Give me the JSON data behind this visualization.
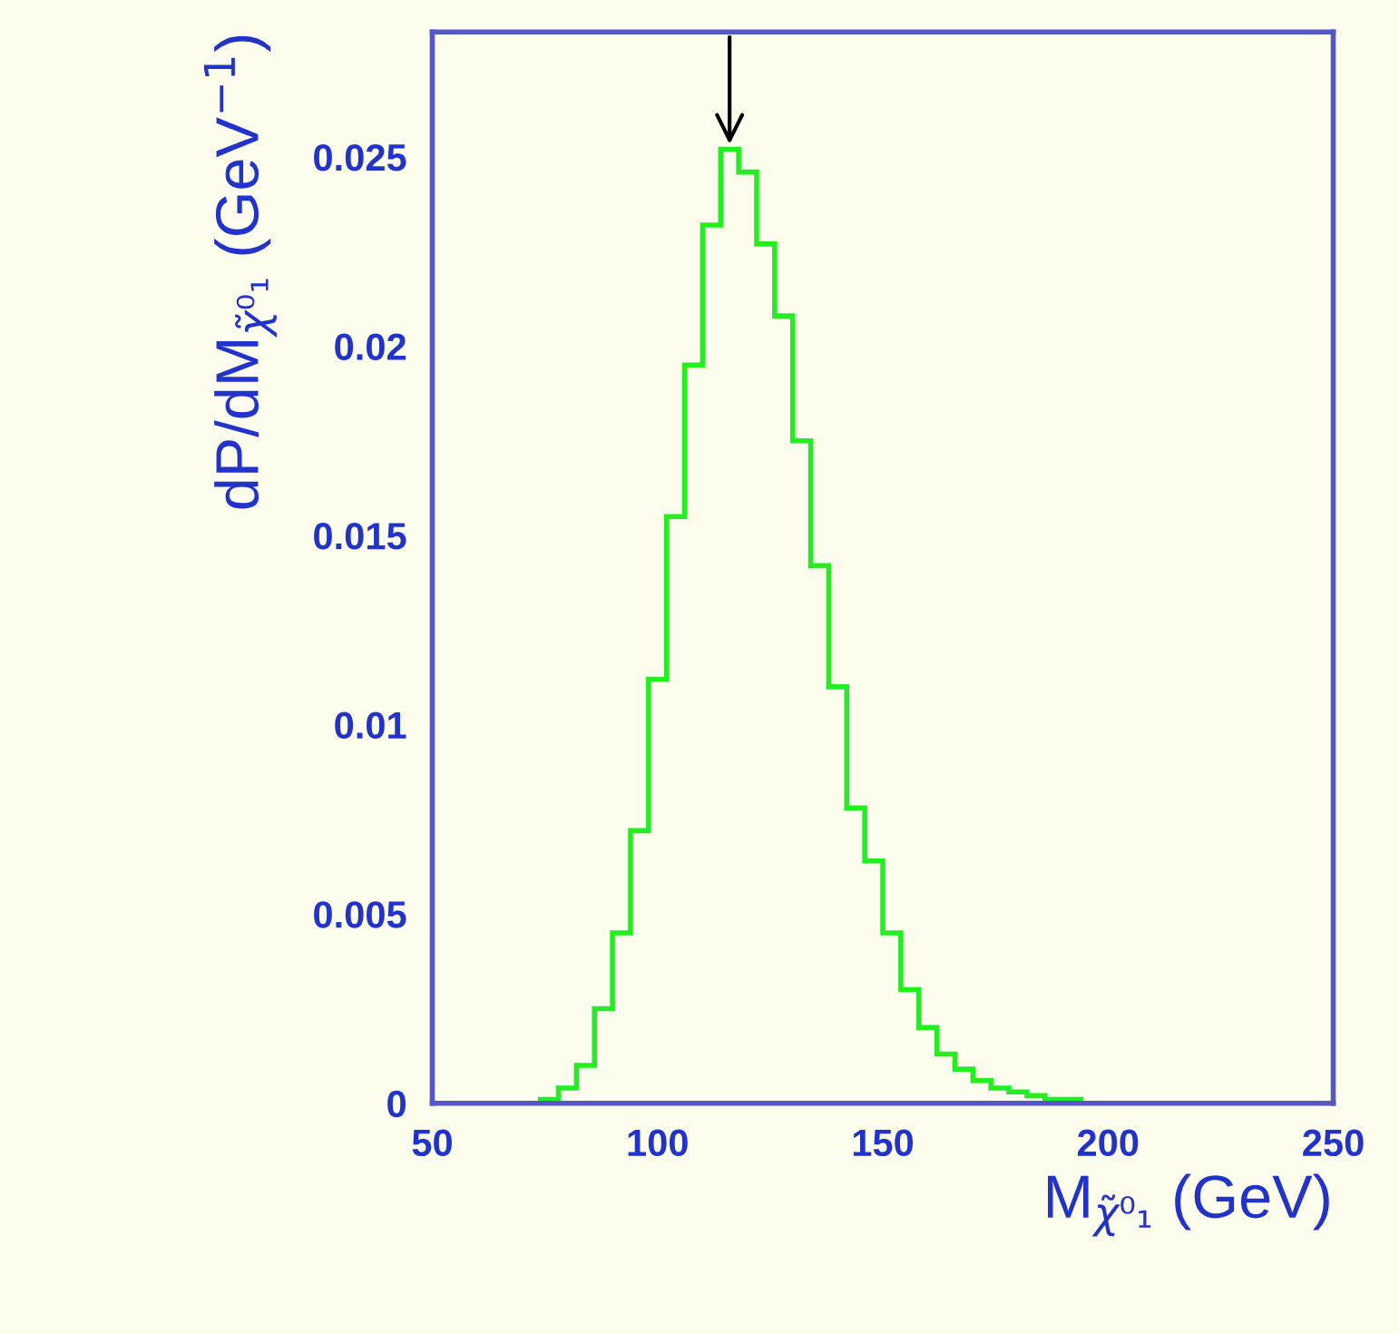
{
  "chart_data": {
    "type": "histogram",
    "xlabel": "M$_{χ̃⁰₁}$ (GeV)",
    "ylabel": "dP/dM$_{χ̃⁰₁}$ (GeV$^{−1}$)",
    "bins": [
      50,
      54,
      58,
      62,
      66,
      70,
      74,
      78,
      82,
      86,
      90,
      94,
      98,
      102,
      106,
      110,
      114,
      118,
      122,
      126,
      130,
      134,
      138,
      142,
      146,
      150,
      154,
      158,
      162,
      166,
      170,
      174,
      178,
      182,
      186,
      190,
      194,
      198,
      202,
      206,
      210,
      214,
      218,
      222,
      226,
      230,
      234,
      238,
      242,
      246,
      250
    ],
    "values": [
      0,
      0,
      0,
      0,
      0,
      0,
      0.0001,
      0.0004,
      0.001,
      0.0025,
      0.0045,
      0.0072,
      0.0112,
      0.0155,
      0.0195,
      0.0232,
      0.0252,
      0.0246,
      0.0227,
      0.0208,
      0.0175,
      0.0142,
      0.011,
      0.0078,
      0.0064,
      0.0045,
      0.003,
      0.002,
      0.0013,
      0.0009,
      0.0006,
      0.0004,
      0.0003,
      0.0002,
      0.0001,
      0.0001,
      0,
      0,
      0,
      0,
      0,
      0,
      0,
      0,
      0,
      0,
      0,
      0,
      0,
      0
    ],
    "color": "#22ee22",
    "xlim": [
      50,
      250
    ],
    "xticks": [
      50,
      100,
      150,
      200,
      250
    ],
    "ylim": [
      0,
      0.0283
    ],
    "yticks": [
      0,
      0.005,
      0.01,
      0.015,
      0.02,
      0.025
    ],
    "grid": false
  }
}
